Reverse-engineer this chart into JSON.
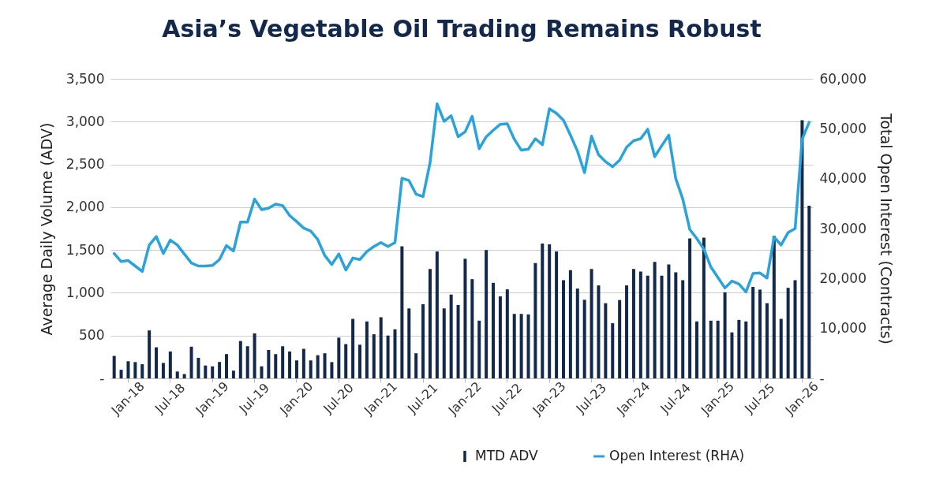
{
  "chart_data": {
    "type": "bar",
    "title": "Asia’s Vegetable Oil Trading Remains Robust",
    "ylabel": "Average Daily Volume (ADV)",
    "y2label": "Total Open Interest (Contracts)",
    "categories": [
      null,
      null,
      "Jan-18",
      null,
      null,
      null,
      null,
      null,
      "Jul-18",
      null,
      null,
      null,
      null,
      null,
      "Jan-19",
      null,
      null,
      null,
      null,
      null,
      "Jul-19",
      null,
      null,
      null,
      null,
      null,
      "Jan-20",
      null,
      null,
      null,
      null,
      null,
      "Jul-20",
      null,
      null,
      null,
      null,
      null,
      "Jan-21",
      null,
      null,
      null,
      null,
      null,
      "Jul-21",
      null,
      null,
      null,
      null,
      null,
      "Jan-22",
      null,
      null,
      null,
      null,
      null,
      "Jul-22",
      null,
      null,
      null,
      null,
      null,
      "Jan-23",
      null,
      null,
      null,
      null,
      null,
      "Jul-23",
      null,
      null,
      null,
      null,
      null,
      "Jan-24",
      null,
      null,
      null,
      null,
      null,
      "Jul-24",
      null,
      null,
      null,
      null,
      null,
      "Jan-25",
      null,
      null,
      null,
      null,
      null,
      "Jul-25",
      null,
      null,
      null,
      null,
      null,
      "Jan-26",
      null
    ],
    "series": [
      {
        "name": "MTD ADV",
        "color": "#13294b",
        "values": [
          262,
          100,
          200,
          190,
          165,
          560,
          363,
          180,
          314,
          80,
          50,
          370,
          240,
          150,
          140,
          190,
          284,
          90,
          436,
          375,
          525,
          140,
          332,
          284,
          375,
          314,
          210,
          345,
          210,
          270,
          293,
          190,
          476,
          400,
          695,
          393,
          665,
          515,
          714,
          500,
          573,
          1543,
          817,
          293,
          866,
          1278,
          1482,
          817,
          979,
          857,
          1397,
          1159,
          674,
          1498,
          1116,
          958,
          1040,
          753,
          753,
          747,
          1348,
          1574,
          1565,
          1482,
          1147,
          1263,
          1049,
          918,
          1278,
          1086,
          878,
          644,
          915,
          1086,
          1278,
          1247,
          1199,
          1360,
          1199,
          1330,
          1238,
          1147,
          1635,
          665,
          1644,
          674,
          674,
          1006,
          537,
          683,
          665,
          1068,
          1037,
          878,
          1665,
          695,
          1058,
          1147,
          3016,
          2016
        ]
      },
      {
        "name": "Open Interest (RHA)",
        "type": "line",
        "axis": "y2",
        "color": "#29a3dc",
        "values": [
          25000,
          23400,
          23600,
          22500,
          21400,
          26700,
          28400,
          25000,
          27700,
          26700,
          24900,
          23100,
          22500,
          22500,
          22600,
          23800,
          26600,
          25500,
          31300,
          31300,
          35900,
          33800,
          34100,
          34900,
          34600,
          32600,
          31400,
          30100,
          29500,
          27800,
          24600,
          22800,
          24900,
          21700,
          24100,
          23800,
          25400,
          26400,
          27200,
          26400,
          27200,
          40100,
          39600,
          36900,
          36400,
          43200,
          55000,
          51500,
          52600,
          48400,
          49400,
          52500,
          46000,
          48400,
          49700,
          50900,
          51000,
          47900,
          45700,
          45900,
          48000,
          46800,
          54000,
          53100,
          51700,
          48700,
          45500,
          41200,
          48500,
          44800,
          43400,
          42400,
          43700,
          46300,
          47600,
          48000,
          49900,
          44400,
          46600,
          48700,
          40000,
          35900,
          29800,
          28000,
          25900,
          22300,
          20200,
          18100,
          19500,
          18900,
          17300,
          21000,
          21100,
          20100,
          28300,
          26700,
          29200,
          30000,
          47900,
          51300
        ]
      }
    ],
    "ylim": [
      0,
      3500
    ],
    "yticks": [
      {
        "value": 0,
        "label": "-"
      },
      500,
      {
        "value": 1000,
        "label": "1,000"
      },
      {
        "value": 1500,
        "label": "1,500"
      },
      {
        "value": 2000,
        "label": "2,000"
      },
      {
        "value": 2500,
        "label": "2,500"
      },
      {
        "value": 3000,
        "label": "3,000"
      },
      {
        "value": 3500,
        "label": "3,500"
      }
    ],
    "y2lim": [
      0,
      60000
    ],
    "y2ticks": [
      {
        "value": 0,
        "label": "-"
      },
      {
        "value": 10000,
        "label": "10,000"
      },
      {
        "value": 20000,
        "label": "20,000"
      },
      {
        "value": 30000,
        "label": "30,000"
      },
      {
        "value": 40000,
        "label": "40,000"
      },
      {
        "value": 50000,
        "label": "50,000"
      },
      {
        "value": 60000,
        "label": "60,000"
      }
    ],
    "grid": "y",
    "legend": "bottom"
  }
}
